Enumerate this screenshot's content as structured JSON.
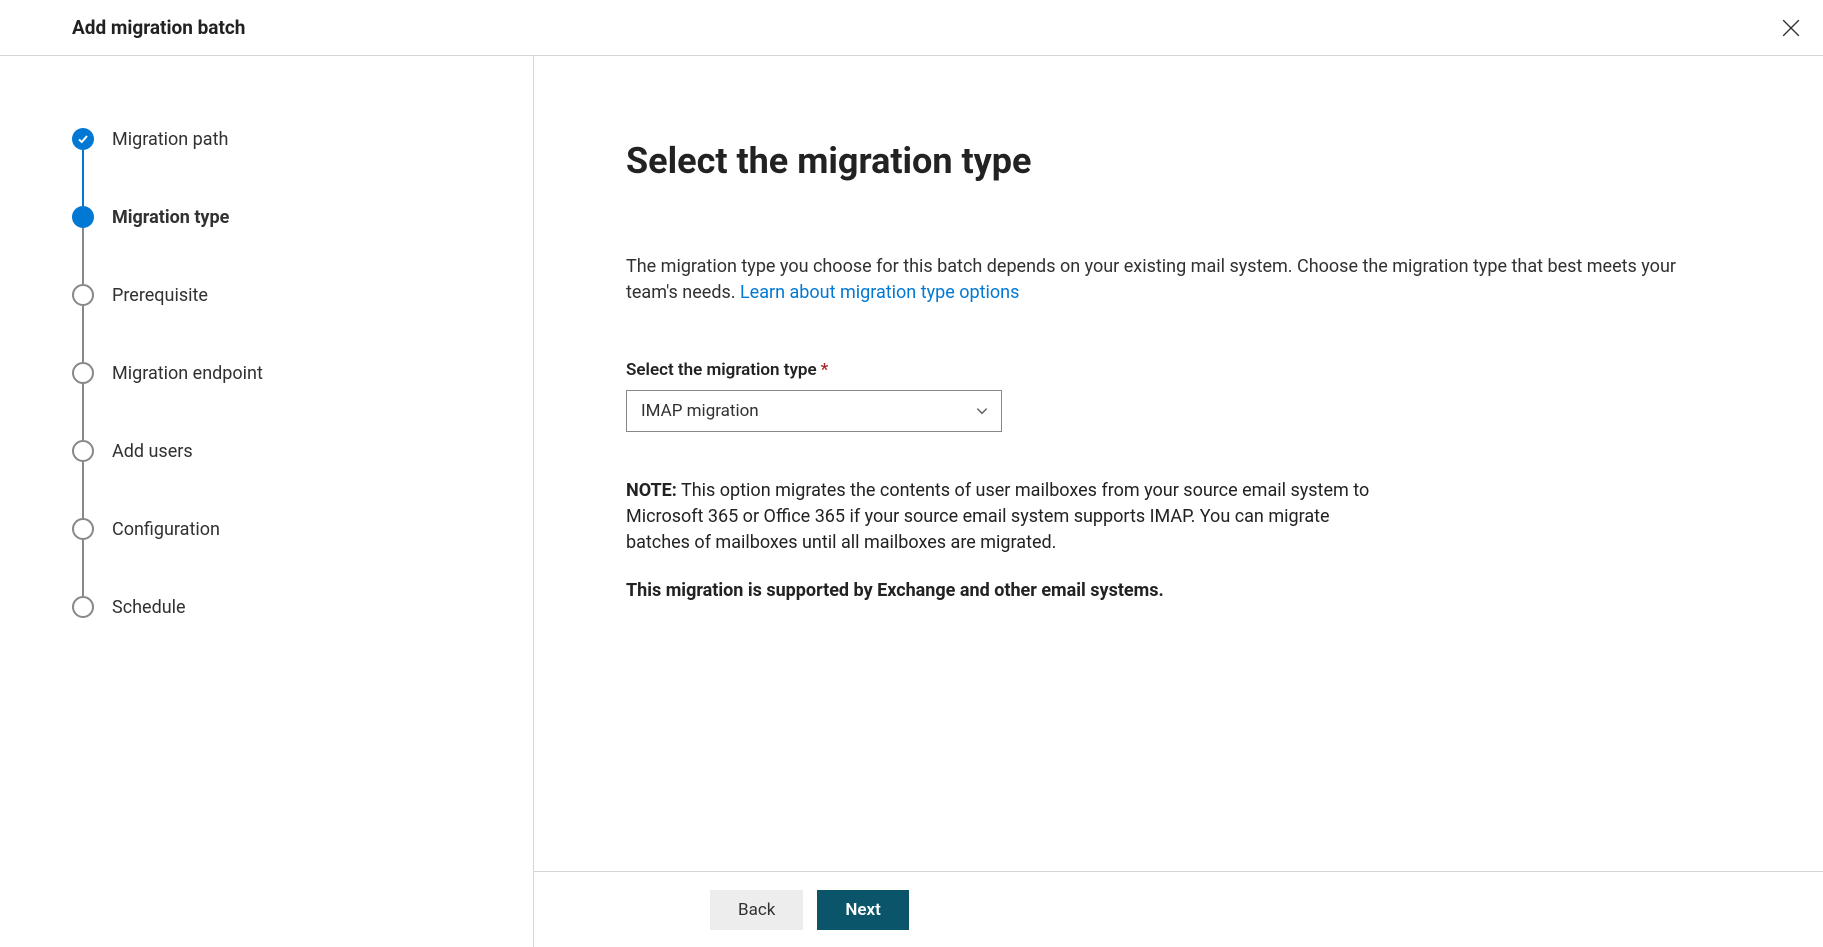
{
  "header": {
    "title": "Add migration batch"
  },
  "stepper": {
    "items": [
      {
        "label": "Migration path",
        "state": "completed"
      },
      {
        "label": "Migration type",
        "state": "current"
      },
      {
        "label": "Prerequisite",
        "state": "upcoming"
      },
      {
        "label": "Migration endpoint",
        "state": "upcoming"
      },
      {
        "label": "Add users",
        "state": "upcoming"
      },
      {
        "label": "Configuration",
        "state": "upcoming"
      },
      {
        "label": "Schedule",
        "state": "upcoming"
      }
    ]
  },
  "main": {
    "title": "Select the migration type",
    "description_pre": "The migration type you choose for this batch depends on your existing mail system. Choose the migration type that best meets your team's needs. ",
    "description_link": "Learn about migration type options",
    "field_label": "Select the migration type",
    "required_mark": "*",
    "dropdown_value": "IMAP migration",
    "note_label": "NOTE:",
    "note_text": " This option migrates the contents of user mailboxes from your source email system to Microsoft 365 or Office 365 if your source email system supports IMAP. You can migrate batches of mailboxes until all mailboxes are migrated.",
    "note_support": "This migration is supported by Exchange and other email systems."
  },
  "footer": {
    "back_label": "Back",
    "next_label": "Next"
  },
  "colors": {
    "accent": "#0078d4",
    "primary_button_bg": "#0b556a",
    "secondary_button_bg": "#ededed",
    "border": "#d6d6d6",
    "text": "#323130",
    "muted_border": "#8a8886",
    "required": "#a4262c"
  }
}
